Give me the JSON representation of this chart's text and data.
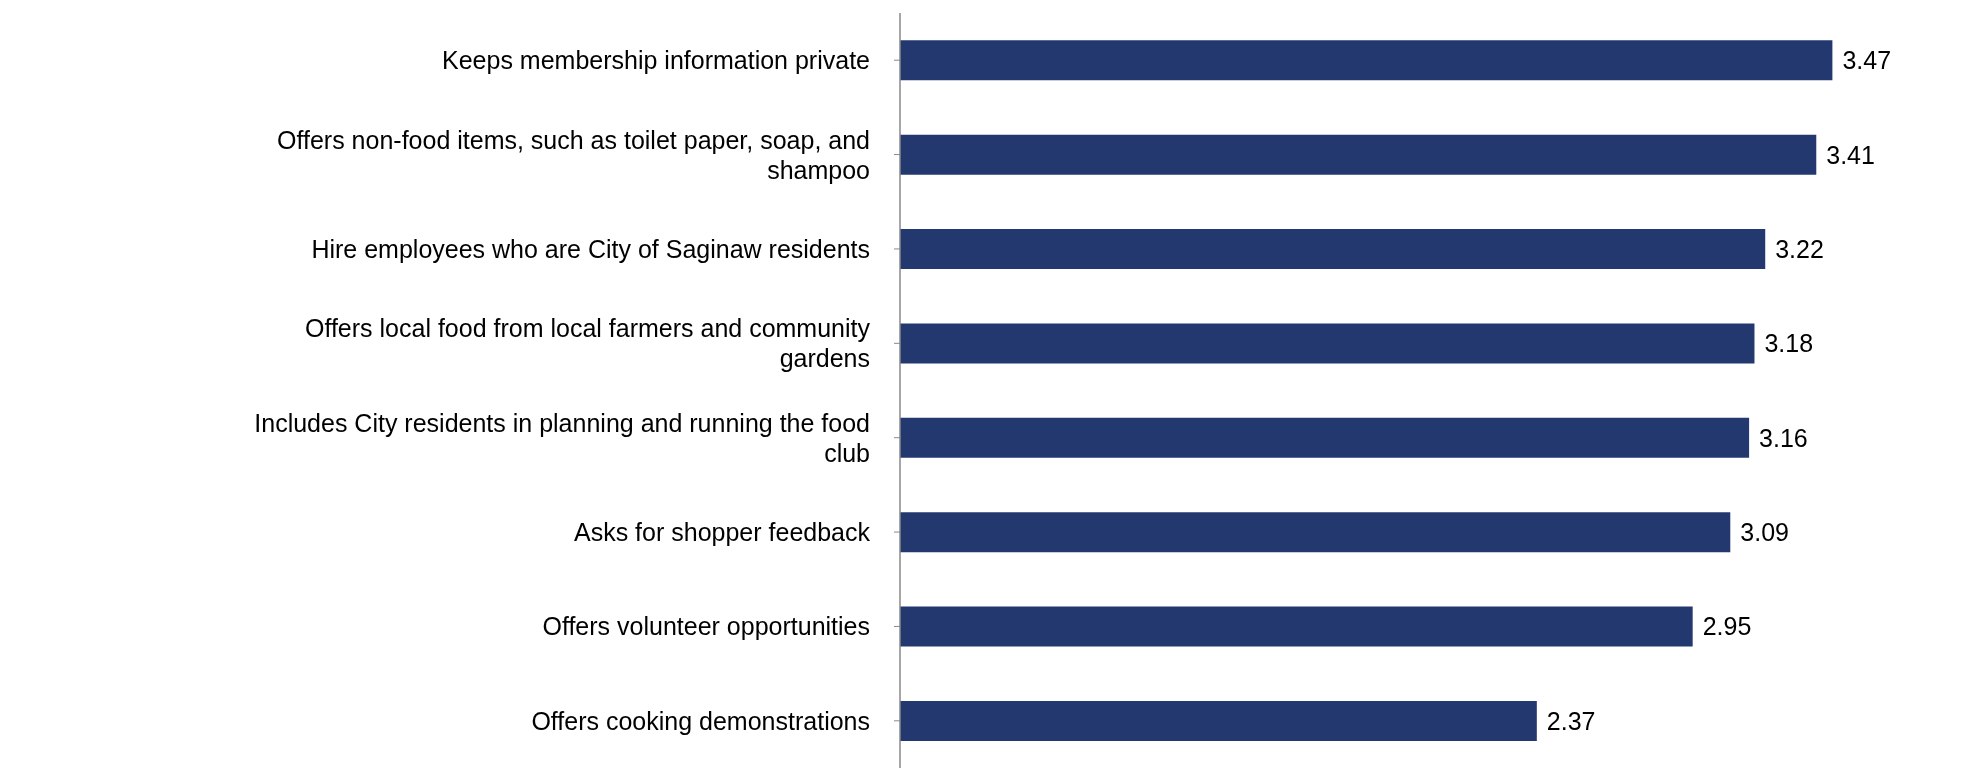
{
  "chart_data": {
    "type": "bar",
    "orientation": "horizontal",
    "categories": [
      "Keeps membership information private",
      "Offers non-food items, such as toilet paper, soap, and shampoo",
      "Hire employees who are City of Saginaw residents",
      "Offers local food from local farmers and community gardens",
      "Includes City residents in planning and running the food club",
      "Asks for shopper feedback",
      "Offers volunteer opportunities",
      "Offers cooking demonstrations"
    ],
    "values": [
      3.47,
      3.41,
      3.22,
      3.18,
      3.16,
      3.09,
      2.95,
      2.37
    ],
    "color": "#243870",
    "data_labels": true,
    "tick_labels": "y",
    "grid": false,
    "legend": false
  }
}
